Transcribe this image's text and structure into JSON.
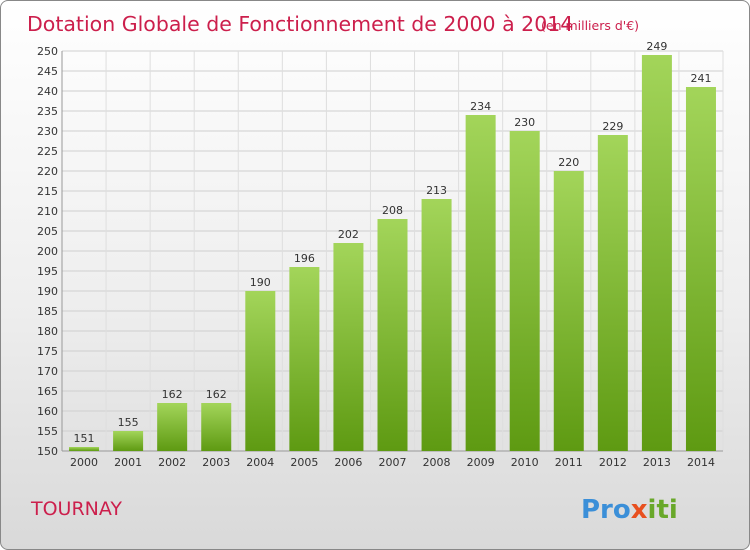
{
  "commune": "TOURNAY",
  "logo": "Proxiti",
  "colors": {
    "accent": "#cc1f4c",
    "bar_top": "#a3d55a",
    "bar_bottom": "#5e9a12"
  },
  "chart_data": {
    "type": "bar",
    "title": "Dotation Globale de Fonctionnement de 2000 à 2014",
    "subtitle": "(en milliers d'€)",
    "xlabel": "",
    "ylabel": "",
    "ylim": [
      150,
      250
    ],
    "ytick_step": 5,
    "grid": true,
    "categories": [
      "2000",
      "2001",
      "2002",
      "2003",
      "2004",
      "2005",
      "2006",
      "2007",
      "2008",
      "2009",
      "2010",
      "2011",
      "2012",
      "2013",
      "2014"
    ],
    "values": [
      151,
      155,
      162,
      162,
      190,
      196,
      202,
      208,
      213,
      234,
      230,
      220,
      229,
      249,
      241
    ]
  }
}
